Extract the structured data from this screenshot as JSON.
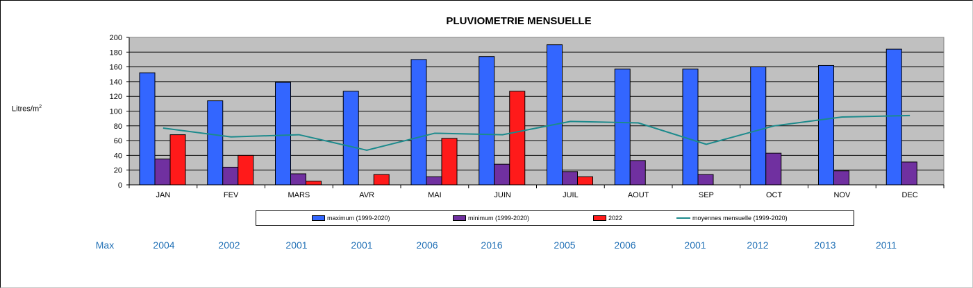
{
  "chart_data": {
    "type": "bar",
    "title": "PLUVIOMETRIE MENSUELLE",
    "ylabel": "Litres/m",
    "ylabel_sup": "2",
    "ylim": [
      0,
      200
    ],
    "yticks": [
      0,
      20,
      40,
      60,
      80,
      100,
      120,
      140,
      160,
      180,
      200
    ],
    "grid": true,
    "legend_position": "bottom",
    "categories": [
      "JAN",
      "FEV",
      "MARS",
      "AVR",
      "MAI",
      "JUIN",
      "JUIL",
      "AOUT",
      "SEP",
      "OCT",
      "NOV",
      "DEC"
    ],
    "series": [
      {
        "name": "maximum (1999-2020)",
        "kind": "bar",
        "color": "#3366ff",
        "values": [
          152,
          114,
          139,
          127,
          170,
          174,
          190,
          157,
          157,
          160,
          162,
          184
        ]
      },
      {
        "name": "minimum (1999-2020)",
        "kind": "bar",
        "color": "#7030a0",
        "values": [
          35,
          24,
          15,
          0,
          11,
          28,
          18,
          33,
          14,
          43,
          19,
          31
        ]
      },
      {
        "name": "2022",
        "kind": "bar",
        "color": "#ff1a1a",
        "values": [
          68,
          40,
          5,
          14,
          63,
          127,
          11,
          null,
          null,
          null,
          null,
          null
        ]
      },
      {
        "name": "moyennes mensuelle (1999-2020)",
        "kind": "line",
        "color": "#1c8a8c",
        "values": [
          77,
          65,
          68,
          47,
          70,
          68,
          86,
          84,
          55,
          80,
          92,
          94
        ]
      }
    ]
  },
  "max_row": {
    "label": "Max",
    "years": [
      "2004",
      "2002",
      "2001",
      "2001",
      "2006",
      "2016",
      "2005",
      "2006",
      "2001",
      "2012",
      "2013",
      "2011"
    ]
  },
  "colors": {
    "plot_background": "#c0c0c0",
    "max_row_text": "#1f6fb5"
  }
}
